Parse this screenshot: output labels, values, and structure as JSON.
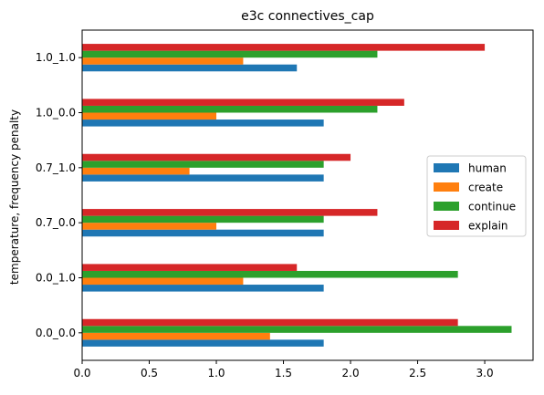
{
  "chart_data": {
    "type": "bar",
    "orientation": "horizontal",
    "title": "e3c connectives_cap",
    "xlabel": "",
    "ylabel": "temperature, frequency penalty",
    "categories": [
      "0.0_0.0",
      "0.0_1.0",
      "0.7_0.0",
      "0.7_1.0",
      "1.0_0.0",
      "1.0_1.0"
    ],
    "xlim": [
      0,
      3.36
    ],
    "xticks": [
      0.0,
      0.5,
      1.0,
      1.5,
      2.0,
      2.5,
      3.0
    ],
    "xtick_labels": [
      "0.0",
      "0.5",
      "1.0",
      "1.5",
      "2.0",
      "2.5",
      "3.0"
    ],
    "grid": false,
    "legend_position": "center-right",
    "series": [
      {
        "name": "human",
        "color": "#1f77b4",
        "values": [
          1.8,
          1.8,
          1.8,
          1.8,
          1.8,
          1.6
        ]
      },
      {
        "name": "create",
        "color": "#ff7f0e",
        "values": [
          1.4,
          1.2,
          1.0,
          0.8,
          1.0,
          1.2
        ]
      },
      {
        "name": "continue",
        "color": "#2ca02c",
        "values": [
          3.2,
          2.8,
          1.8,
          1.8,
          2.2,
          2.2
        ]
      },
      {
        "name": "explain",
        "color": "#d62728",
        "values": [
          2.8,
          1.6,
          2.2,
          2.0,
          2.4,
          3.0
        ]
      }
    ]
  }
}
